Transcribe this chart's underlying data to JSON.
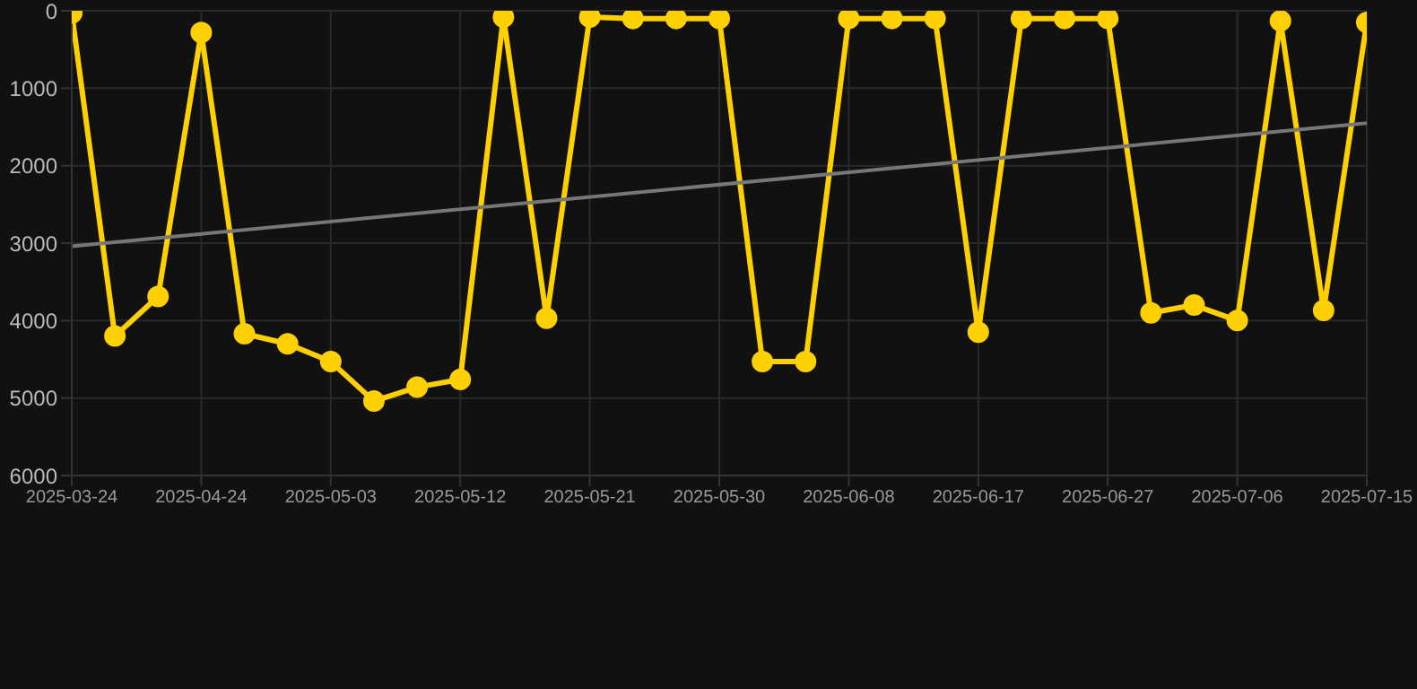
{
  "chart_data": {
    "type": "line",
    "categories": [
      "2025-03-24",
      null,
      null,
      "2025-04-24",
      null,
      null,
      "2025-05-03",
      null,
      null,
      "2025-05-12",
      null,
      null,
      "2025-05-21",
      null,
      null,
      "2025-05-30",
      null,
      null,
      "2025-06-08",
      null,
      null,
      "2025-06-17",
      null,
      null,
      "2025-06-27",
      null,
      null,
      "2025-07-06",
      null,
      null,
      "2025-07-15"
    ],
    "series": [
      {
        "color": "#ffd000",
        "marker": "circle",
        "values": [
          30,
          4200,
          3690,
          280,
          4170,
          4300,
          4530,
          5040,
          4860,
          4760,
          80,
          3970,
          80,
          100,
          100,
          100,
          4530,
          4530,
          100,
          100,
          100,
          4150,
          100,
          100,
          100,
          3900,
          3800,
          4000,
          130,
          3870,
          150
        ]
      },
      {
        "type": "line",
        "color": "#777777",
        "marker": "none",
        "values": [
          3040,
          null,
          null,
          null,
          null,
          null,
          null,
          null,
          null,
          null,
          null,
          null,
          null,
          null,
          null,
          null,
          null,
          null,
          null,
          null,
          null,
          null,
          null,
          null,
          null,
          null,
          null,
          null,
          null,
          null,
          1450
        ]
      }
    ],
    "ylim": [
      6000,
      0
    ],
    "yticks": [
      0,
      1000,
      2000,
      3000,
      4000,
      5000,
      6000
    ],
    "grid": true,
    "legend": false
  }
}
